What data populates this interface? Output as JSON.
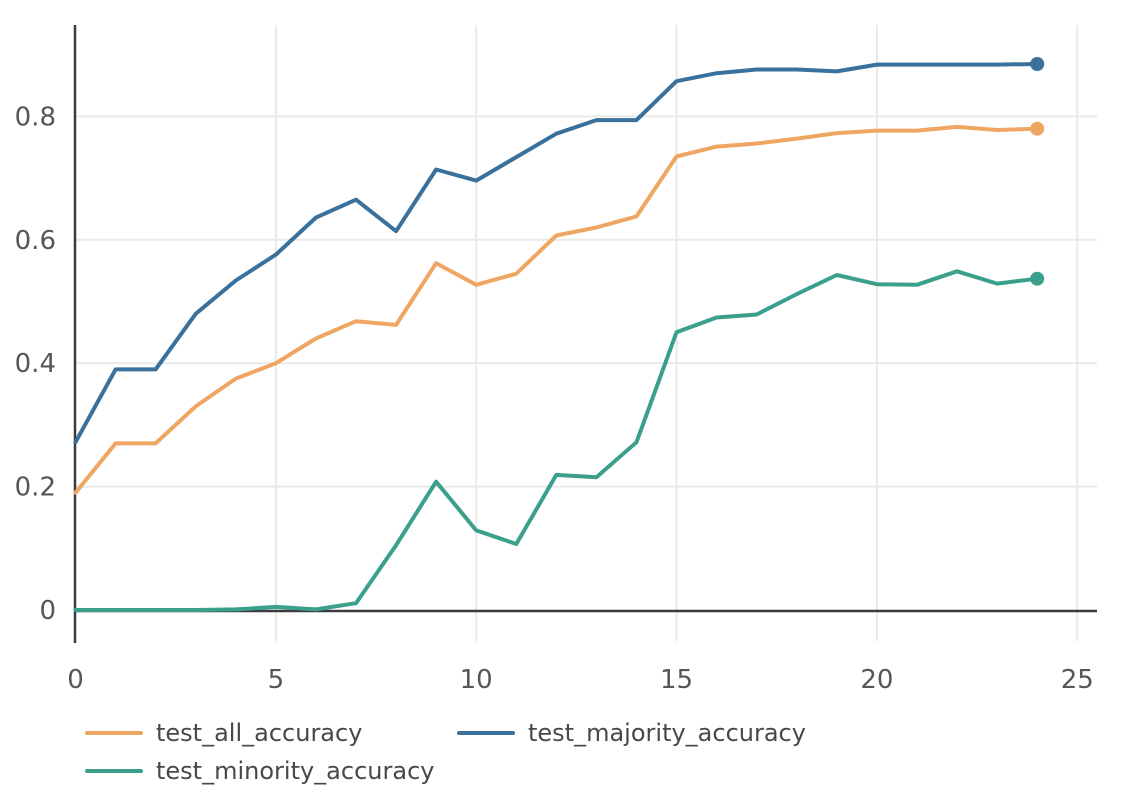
{
  "colors": {
    "axis": "#3b3b3b",
    "grid": "#e9e9e9",
    "tick_text": "#565656",
    "legend_text": "#484848",
    "background": "#ffffff"
  },
  "chart_data": {
    "type": "line",
    "title": "",
    "xlabel": "",
    "ylabel": "",
    "grid": true,
    "legend_position": "bottom",
    "end_markers": true,
    "xlim": [
      0,
      25.5
    ],
    "ylim": [
      0,
      0.948
    ],
    "x_ticks": [
      0,
      5,
      10,
      15,
      20,
      25
    ],
    "x_tick_labels": [
      "0",
      "5",
      "10",
      "15",
      "20",
      "25"
    ],
    "y_ticks": [
      0,
      0.2,
      0.4,
      0.6,
      0.8
    ],
    "y_tick_labels": [
      "0",
      "0.2",
      "0.4",
      "0.6",
      "0.8"
    ],
    "x": [
      0,
      1,
      2,
      3,
      4,
      5,
      6,
      7,
      8,
      9,
      10,
      11,
      12,
      13,
      14,
      15,
      16,
      17,
      18,
      19,
      20,
      21,
      22,
      23,
      24
    ],
    "series": [
      {
        "name": "test_all_accuracy",
        "color": "#eea662",
        "values": [
          0.19,
          0.27,
          0.27,
          0.33,
          0.375,
          0.4,
          0.44,
          0.468,
          0.462,
          0.562,
          0.527,
          0.545,
          0.607,
          0.62,
          0.638,
          0.735,
          0.751,
          0.756,
          0.764,
          0.773,
          0.777,
          0.777,
          0.783,
          0.778,
          0.78
        ]
      },
      {
        "name": "test_majority_accuracy",
        "color": "#39719c",
        "values": [
          0.272,
          0.39,
          0.39,
          0.48,
          0.534,
          0.576,
          0.636,
          0.665,
          0.614,
          0.714,
          0.696,
          0.734,
          0.772,
          0.794,
          0.794,
          0.857,
          0.87,
          0.876,
          0.876,
          0.873,
          0.884,
          0.884,
          0.884,
          0.884,
          0.885
        ]
      },
      {
        "name": "test_minority_accuracy",
        "color": "#3aa08c",
        "values": [
          0.0,
          0.0,
          0.0,
          0.0,
          0.001,
          0.005,
          0.001,
          0.011,
          0.105,
          0.208,
          0.129,
          0.107,
          0.219,
          0.215,
          0.272,
          0.45,
          0.474,
          0.479,
          0.512,
          0.543,
          0.528,
          0.527,
          0.549,
          0.529,
          0.537
        ]
      }
    ]
  }
}
